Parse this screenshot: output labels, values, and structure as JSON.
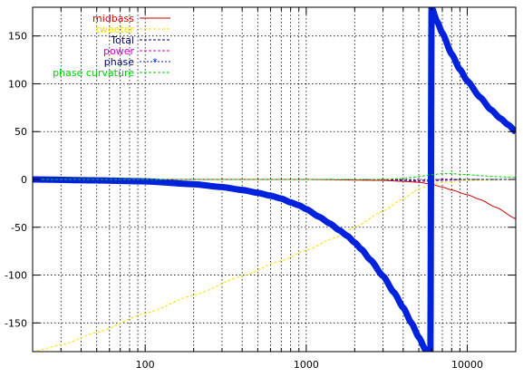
{
  "chart_data": {
    "type": "line",
    "title": "",
    "xlabel": "",
    "ylabel": "",
    "xscale": "log",
    "xlim": [
      20,
      20000
    ],
    "ylim": [
      -180,
      180
    ],
    "grid": true,
    "legend_position": "top-left",
    "xticks": [
      {
        "value": 100,
        "label": "100"
      },
      {
        "value": 1000,
        "label": "1000"
      },
      {
        "value": 10000,
        "label": "10000"
      }
    ],
    "yticks": [
      {
        "value": 150,
        "label": "150"
      },
      {
        "value": 100,
        "label": "100"
      },
      {
        "value": 50,
        "label": "50"
      },
      {
        "value": 0,
        "label": "0"
      },
      {
        "value": -50,
        "label": "-50"
      },
      {
        "value": -100,
        "label": "-100"
      },
      {
        "value": -150,
        "label": "-150"
      }
    ],
    "series": [
      {
        "name": "midbass",
        "color": "#cc0000",
        "style": "solid",
        "points": [
          [
            20,
            0
          ],
          [
            1000,
            0
          ],
          [
            3000,
            -1
          ],
          [
            4000,
            -2
          ],
          [
            5000,
            -3
          ],
          [
            6000,
            -5
          ],
          [
            7000,
            -8
          ],
          [
            8000,
            -11
          ],
          [
            10000,
            -16
          ],
          [
            12000,
            -21
          ],
          [
            15000,
            -29
          ],
          [
            20000,
            -41
          ]
        ]
      },
      {
        "name": "tweeter",
        "color": "#f0e000",
        "style": "dashed",
        "points": [
          [
            20,
            -180
          ],
          [
            30,
            -173
          ],
          [
            50,
            -160
          ],
          [
            100,
            -140
          ],
          [
            200,
            -121
          ],
          [
            400,
            -101
          ],
          [
            700,
            -85
          ],
          [
            1000,
            -74
          ],
          [
            1500,
            -61
          ],
          [
            2000,
            -50
          ],
          [
            3000,
            -33
          ],
          [
            4000,
            -20
          ],
          [
            5000,
            -10
          ],
          [
            6000,
            -5
          ],
          [
            7000,
            -3
          ],
          [
            10000,
            -1
          ],
          [
            20000,
            0
          ]
        ]
      },
      {
        "name": "Total",
        "color": "#000066",
        "style": "dashed",
        "points": [
          [
            20,
            0
          ],
          [
            3000,
            0
          ],
          [
            5000,
            -1
          ],
          [
            7000,
            0
          ],
          [
            10000,
            0
          ],
          [
            20000,
            0
          ]
        ]
      },
      {
        "name": "power",
        "color": "#cc00cc",
        "style": "dashed",
        "points": [
          [
            20,
            0
          ],
          [
            3000,
            0
          ],
          [
            4000,
            -1
          ],
          [
            5000,
            -2
          ],
          [
            6000,
            -2
          ],
          [
            7000,
            -1
          ],
          [
            10000,
            0
          ],
          [
            20000,
            0
          ]
        ]
      },
      {
        "name": "phase",
        "color": "#0022dd",
        "style": "thick",
        "points": [
          [
            20,
            0
          ],
          [
            50,
            -1
          ],
          [
            100,
            -2
          ],
          [
            200,
            -5
          ],
          [
            300,
            -8
          ],
          [
            400,
            -11
          ],
          [
            500,
            -14
          ],
          [
            600,
            -17
          ],
          [
            700,
            -20
          ],
          [
            800,
            -24
          ],
          [
            900,
            -27
          ],
          [
            1000,
            -31
          ],
          [
            1200,
            -39
          ],
          [
            1400,
            -46
          ],
          [
            1600,
            -53
          ],
          [
            1800,
            -59
          ],
          [
            2000,
            -66
          ],
          [
            2200,
            -73
          ],
          [
            2500,
            -84
          ],
          [
            3000,
            -101
          ],
          [
            3500,
            -118
          ],
          [
            4000,
            -134
          ],
          [
            4500,
            -150
          ],
          [
            5000,
            -165
          ],
          [
            5500,
            -178
          ],
          [
            5900,
            -190
          ],
          [
            6000,
            180
          ],
          [
            6500,
            165
          ],
          [
            7000,
            153
          ],
          [
            8000,
            131
          ],
          [
            9000,
            115
          ],
          [
            10000,
            103
          ],
          [
            12000,
            86
          ],
          [
            14000,
            73
          ],
          [
            16000,
            64
          ],
          [
            18000,
            57
          ],
          [
            20000,
            50
          ]
        ]
      },
      {
        "name": "phase curvature",
        "color": "#00cc00",
        "style": "dashed",
        "points": [
          [
            20,
            0
          ],
          [
            3000,
            0
          ],
          [
            4000,
            1
          ],
          [
            5000,
            3
          ],
          [
            6000,
            5
          ],
          [
            7000,
            6
          ],
          [
            8000,
            6
          ],
          [
            10000,
            5
          ],
          [
            12000,
            4
          ],
          [
            15000,
            3
          ],
          [
            20000,
            2
          ]
        ]
      }
    ]
  }
}
